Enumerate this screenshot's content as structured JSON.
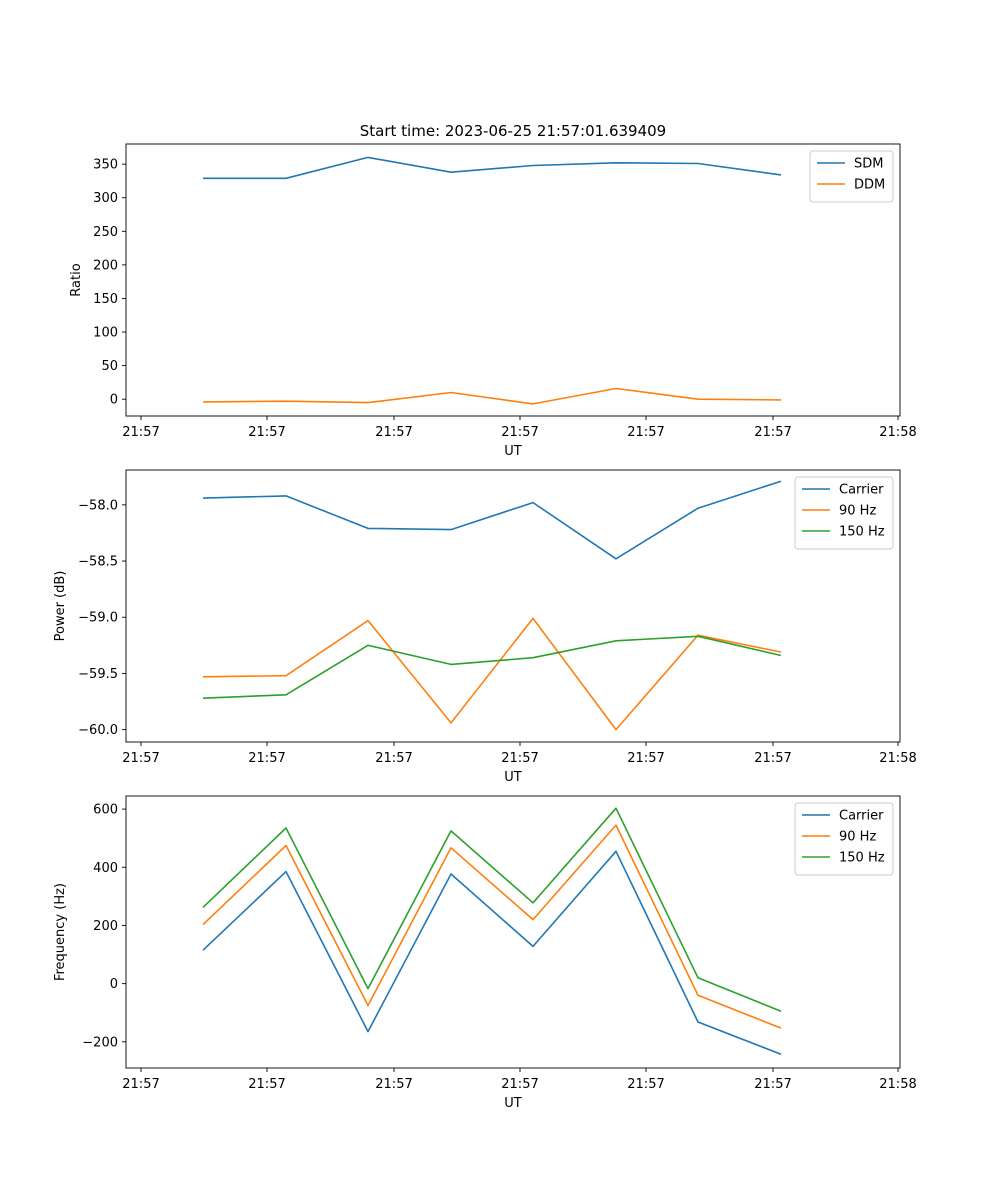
{
  "figure": {
    "title": "Start time: 2023-06-25 21:57:01.639409"
  },
  "chart_data": [
    {
      "type": "line",
      "title": "Start time: 2023-06-25 21:57:01.639409",
      "xlabel": "UT",
      "ylabel": "Ratio",
      "x_tick_labels": [
        "21:57",
        "21:57",
        "21:57",
        "21:57",
        "21:57",
        "21:57",
        "21:58"
      ],
      "x_points": 8,
      "ylim": [
        -25,
        380
      ],
      "y_ticks": [
        0,
        50,
        100,
        150,
        200,
        250,
        300,
        350
      ],
      "y_tick_labels": [
        "0",
        "50",
        "100",
        "150",
        "200",
        "250",
        "300",
        "350"
      ],
      "grid": false,
      "legend_position": "top-right",
      "series": [
        {
          "name": "SDM",
          "color": "#1f77b4",
          "values": [
            329,
            329,
            360,
            338,
            348,
            352,
            351,
            334
          ]
        },
        {
          "name": "DDM",
          "color": "#ff7f0e",
          "values": [
            -4,
            -3,
            -5,
            10,
            -7,
            16,
            0,
            -1
          ]
        }
      ]
    },
    {
      "type": "line",
      "xlabel": "UT",
      "ylabel": "Power (dB)",
      "x_tick_labels": [
        "21:57",
        "21:57",
        "21:57",
        "21:57",
        "21:57",
        "21:57",
        "21:58"
      ],
      "x_points": 8,
      "ylim": [
        -60.11,
        -57.69
      ],
      "y_ticks": [
        -60.0,
        -59.5,
        -59.0,
        -58.5,
        -58.0
      ],
      "y_tick_labels": [
        "−60.0",
        "−59.5",
        "−59.0",
        "−58.5",
        "−58.0"
      ],
      "grid": false,
      "legend_position": "top-right",
      "series": [
        {
          "name": "Carrier",
          "color": "#1f77b4",
          "values": [
            -57.94,
            -57.92,
            -58.21,
            -58.22,
            -57.98,
            -58.48,
            -58.03,
            -57.79
          ]
        },
        {
          "name": "90 Hz",
          "color": "#ff7f0e",
          "values": [
            -59.53,
            -59.52,
            -59.03,
            -59.94,
            -59.01,
            -60.0,
            -59.16,
            -59.31
          ]
        },
        {
          "name": "150 Hz",
          "color": "#2ca02c",
          "values": [
            -59.72,
            -59.69,
            -59.25,
            -59.42,
            -59.36,
            -59.21,
            -59.17,
            -59.34
          ]
        }
      ]
    },
    {
      "type": "line",
      "xlabel": "UT",
      "ylabel": "Frequency (Hz)",
      "x_tick_labels": [
        "21:57",
        "21:57",
        "21:57",
        "21:57",
        "21:57",
        "21:57",
        "21:58"
      ],
      "x_points": 8,
      "ylim": [
        -290,
        645
      ],
      "y_ticks": [
        -200,
        0,
        200,
        400,
        600
      ],
      "y_tick_labels": [
        "−200",
        "0",
        "200",
        "400",
        "600"
      ],
      "grid": false,
      "legend_position": "top-right",
      "series": [
        {
          "name": "Carrier",
          "color": "#1f77b4",
          "values": [
            115,
            385,
            -165,
            377,
            128,
            455,
            -132,
            -243
          ]
        },
        {
          "name": "90 Hz",
          "color": "#ff7f0e",
          "values": [
            203,
            475,
            -75,
            467,
            220,
            545,
            -40,
            -153
          ]
        },
        {
          "name": "150 Hz",
          "color": "#2ca02c",
          "values": [
            262,
            535,
            -17,
            525,
            278,
            603,
            20,
            -95
          ]
        }
      ]
    }
  ]
}
